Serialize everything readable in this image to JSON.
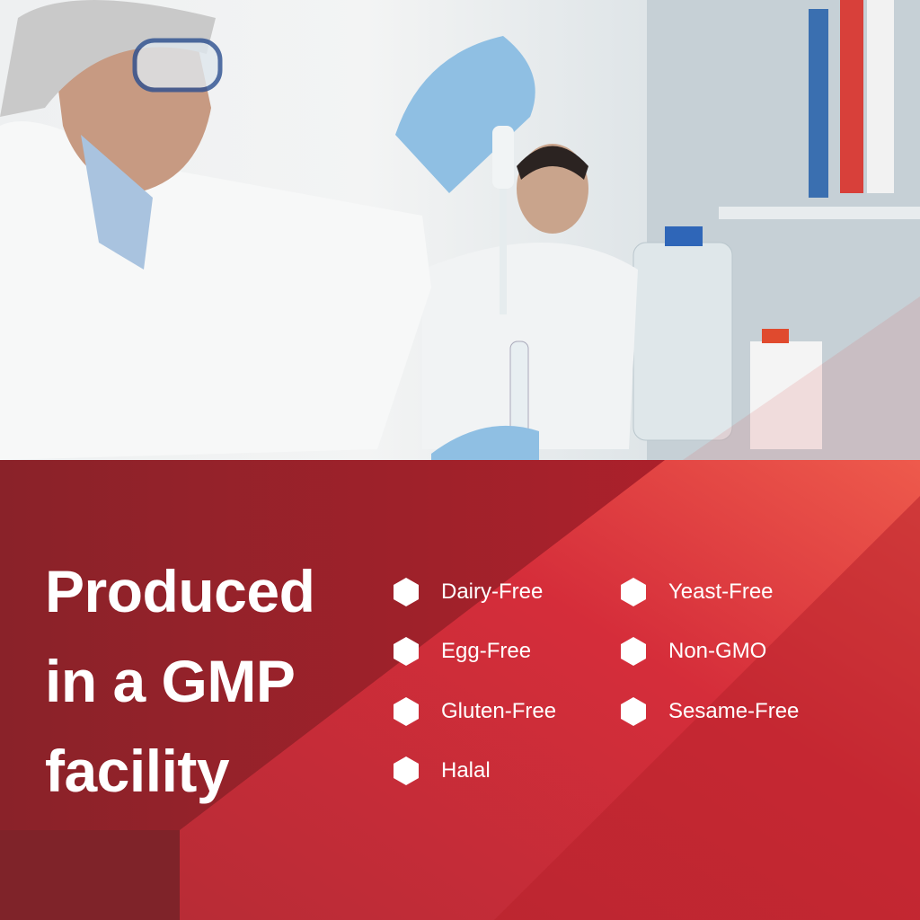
{
  "heading": {
    "lines": [
      "Produced",
      "in a GMP",
      "facility"
    ]
  },
  "features": [
    {
      "label": "Dairy-Free",
      "icon": "hexagon-bullet-icon"
    },
    {
      "label": "Egg-Free",
      "icon": "hexagon-bullet-icon"
    },
    {
      "label": "Gluten-Free",
      "icon": "hexagon-bullet-icon"
    },
    {
      "label": "Halal",
      "icon": "hexagon-bullet-icon"
    },
    {
      "label": "Yeast-Free",
      "icon": "hexagon-bullet-icon"
    },
    {
      "label": "Non-GMO",
      "icon": "hexagon-bullet-icon"
    },
    {
      "label": "Sesame-Free",
      "icon": "hexagon-bullet-icon"
    }
  ],
  "colors": {
    "panel_dark": "#8e2229",
    "panel_mid": "#c92a36",
    "panel_light": "#e9504a",
    "text": "#ffffff"
  }
}
